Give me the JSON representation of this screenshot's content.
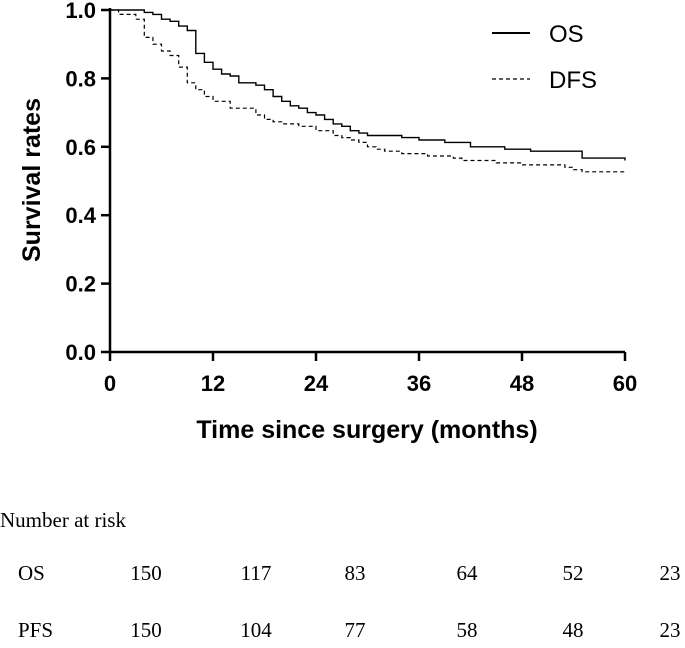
{
  "chart_data": {
    "type": "line",
    "xlabel": "Time since surgery (months)",
    "ylabel": "Survival rates",
    "xlim": [
      0,
      60
    ],
    "ylim": [
      0,
      1.0
    ],
    "xticks": [
      "0",
      "12",
      "24",
      "36",
      "48",
      "60"
    ],
    "yticks": [
      "0.0",
      "0.2",
      "0.4",
      "0.6",
      "0.8",
      "1.0"
    ],
    "legend_position": "top-right",
    "series": [
      {
        "name": "OS",
        "style": "solid",
        "x": [
          0,
          4,
          5,
          6,
          7,
          8,
          9,
          10,
          11,
          12,
          13,
          14,
          15,
          17,
          18,
          19,
          20,
          21,
          22,
          23,
          24,
          25,
          26,
          27,
          28,
          29,
          30,
          34,
          36,
          39,
          42,
          46,
          49,
          55,
          60
        ],
        "y": [
          1.0,
          0.993,
          0.987,
          0.973,
          0.967,
          0.953,
          0.94,
          0.873,
          0.847,
          0.827,
          0.813,
          0.807,
          0.787,
          0.78,
          0.767,
          0.747,
          0.733,
          0.72,
          0.713,
          0.7,
          0.693,
          0.68,
          0.667,
          0.66,
          0.647,
          0.64,
          0.633,
          0.627,
          0.62,
          0.613,
          0.6,
          0.593,
          0.587,
          0.567,
          0.56
        ]
      },
      {
        "name": "DFS",
        "style": "dashed",
        "x": [
          0,
          1,
          3,
          4,
          5,
          6,
          7,
          8,
          9,
          10,
          11,
          12,
          14,
          17,
          18,
          19,
          20,
          22,
          24,
          26,
          27,
          28,
          29,
          30,
          31,
          32,
          34,
          37,
          40,
          41,
          45,
          48,
          53,
          54,
          55,
          60
        ],
        "y": [
          1.0,
          0.987,
          0.973,
          0.92,
          0.9,
          0.88,
          0.867,
          0.833,
          0.787,
          0.767,
          0.747,
          0.733,
          0.713,
          0.693,
          0.68,
          0.673,
          0.667,
          0.66,
          0.647,
          0.633,
          0.627,
          0.62,
          0.613,
          0.6,
          0.593,
          0.587,
          0.58,
          0.573,
          0.567,
          0.56,
          0.553,
          0.547,
          0.54,
          0.533,
          0.527,
          0.523
        ]
      }
    ]
  },
  "risk_table": {
    "title": "Number at risk",
    "rows": [
      {
        "label": "OS",
        "values": [
          "150",
          "117",
          "83",
          "64",
          "52",
          "23"
        ]
      },
      {
        "label": "PFS",
        "values": [
          "150",
          "104",
          "77",
          "58",
          "48",
          "23"
        ]
      }
    ]
  }
}
